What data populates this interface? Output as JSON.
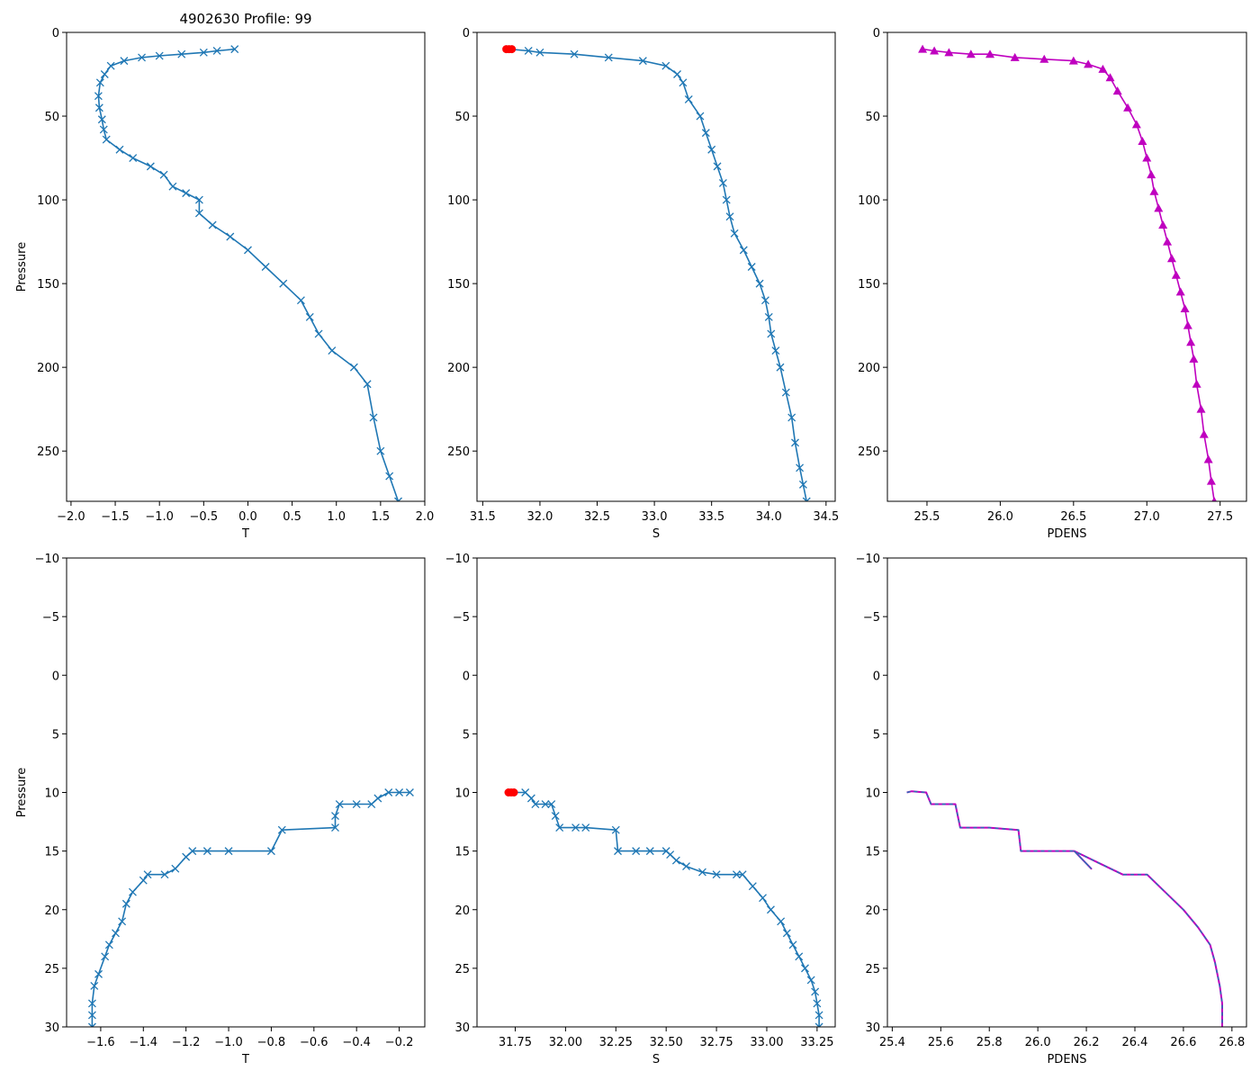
{
  "figure_title": "4902630 Profile: 99",
  "colors": {
    "series": "#1f77b4",
    "surface_marker": "#ff0000",
    "density": "#bf00bf",
    "density_dash": "#1f77b4"
  },
  "chart_data": [
    {
      "id": "top-t",
      "type": "line",
      "title": "4902630 Profile: 99",
      "xlabel": "T",
      "ylabel": "Pressure",
      "xlim": [
        -2.05,
        2.0
      ],
      "ylim": [
        280,
        0
      ],
      "y_inverted": true,
      "xticks": [
        -2.0,
        -1.5,
        -1.0,
        -0.5,
        0.0,
        0.5,
        1.0,
        1.5,
        2.0
      ],
      "xtick_labels": [
        "−2.0",
        "−1.5",
        "−1.0",
        "−0.5",
        "0.0",
        "0.5",
        "1.0",
        "1.5",
        "2.0"
      ],
      "yticks": [
        0,
        50,
        100,
        150,
        200,
        250
      ],
      "ytick_labels": [
        "0",
        "50",
        "100",
        "150",
        "200",
        "250"
      ],
      "series": [
        {
          "name": "T",
          "marker": "x",
          "color": "#1f77b4",
          "points": [
            [
              -0.15,
              10
            ],
            [
              -0.35,
              11
            ],
            [
              -0.5,
              12
            ],
            [
              -0.75,
              13
            ],
            [
              -1.0,
              14
            ],
            [
              -1.2,
              15
            ],
            [
              -1.4,
              17
            ],
            [
              -1.55,
              20
            ],
            [
              -1.62,
              25
            ],
            [
              -1.67,
              30
            ],
            [
              -1.69,
              38
            ],
            [
              -1.68,
              45
            ],
            [
              -1.65,
              52
            ],
            [
              -1.63,
              58
            ],
            [
              -1.6,
              64
            ],
            [
              -1.45,
              70
            ],
            [
              -1.3,
              75
            ],
            [
              -1.1,
              80
            ],
            [
              -0.95,
              85
            ],
            [
              -0.85,
              92
            ],
            [
              -0.7,
              96
            ],
            [
              -0.55,
              100
            ],
            [
              -0.55,
              108
            ],
            [
              -0.4,
              115
            ],
            [
              -0.2,
              122
            ],
            [
              0.0,
              130
            ],
            [
              0.2,
              140
            ],
            [
              0.4,
              150
            ],
            [
              0.6,
              160
            ],
            [
              0.7,
              170
            ],
            [
              0.8,
              180
            ],
            [
              0.95,
              190
            ],
            [
              1.2,
              200
            ],
            [
              1.35,
              210
            ],
            [
              1.42,
              230
            ],
            [
              1.5,
              250
            ],
            [
              1.6,
              265
            ],
            [
              1.7,
              280
            ]
          ]
        }
      ]
    },
    {
      "id": "top-s",
      "type": "line",
      "xlabel": "S",
      "ylabel": "",
      "xlim": [
        31.45,
        34.58
      ],
      "ylim": [
        280,
        0
      ],
      "y_inverted": true,
      "xticks": [
        31.5,
        32.0,
        32.5,
        33.0,
        33.5,
        34.0,
        34.5
      ],
      "xtick_labels": [
        "31.5",
        "32.0",
        "32.5",
        "33.0",
        "33.5",
        "34.0",
        "34.5"
      ],
      "yticks": [
        0,
        50,
        100,
        150,
        200,
        250
      ],
      "ytick_labels": [
        "0",
        "50",
        "100",
        "150",
        "200",
        "250"
      ],
      "series": [
        {
          "name": "S",
          "marker": "x",
          "color": "#1f77b4",
          "points": [
            [
              31.73,
              10
            ],
            [
              31.9,
              11
            ],
            [
              32.0,
              12
            ],
            [
              32.3,
              13
            ],
            [
              32.6,
              15
            ],
            [
              32.9,
              17
            ],
            [
              33.1,
              20
            ],
            [
              33.2,
              25
            ],
            [
              33.25,
              30
            ],
            [
              33.3,
              40
            ],
            [
              33.4,
              50
            ],
            [
              33.45,
              60
            ],
            [
              33.5,
              70
            ],
            [
              33.55,
              80
            ],
            [
              33.6,
              90
            ],
            [
              33.63,
              100
            ],
            [
              33.66,
              110
            ],
            [
              33.7,
              120
            ],
            [
              33.78,
              130
            ],
            [
              33.85,
              140
            ],
            [
              33.92,
              150
            ],
            [
              33.97,
              160
            ],
            [
              34.0,
              170
            ],
            [
              34.02,
              180
            ],
            [
              34.06,
              190
            ],
            [
              34.1,
              200
            ],
            [
              34.15,
              215
            ],
            [
              34.2,
              230
            ],
            [
              34.23,
              245
            ],
            [
              34.27,
              260
            ],
            [
              34.3,
              270
            ],
            [
              34.33,
              280
            ]
          ]
        }
      ],
      "surface_marker": {
        "x": 31.73,
        "y": 10,
        "color": "#ff0000"
      }
    },
    {
      "id": "top-pdens",
      "type": "line",
      "xlabel": "PDENS",
      "ylabel": "",
      "xlim": [
        25.23,
        27.68
      ],
      "ylim": [
        280,
        0
      ],
      "y_inverted": true,
      "xticks": [
        25.5,
        26.0,
        26.5,
        27.0,
        27.5
      ],
      "xtick_labels": [
        "25.5",
        "26.0",
        "26.5",
        "27.0",
        "27.5"
      ],
      "yticks": [
        0,
        50,
        100,
        150,
        200,
        250
      ],
      "ytick_labels": [
        "0",
        "50",
        "100",
        "150",
        "200",
        "250"
      ],
      "series": [
        {
          "name": "PDENS",
          "marker": "^",
          "color": "#bf00bf",
          "points": [
            [
              25.47,
              10
            ],
            [
              25.55,
              11
            ],
            [
              25.65,
              12
            ],
            [
              25.8,
              13
            ],
            [
              25.93,
              13
            ],
            [
              26.1,
              15
            ],
            [
              26.3,
              16
            ],
            [
              26.5,
              17
            ],
            [
              26.6,
              19
            ],
            [
              26.7,
              22
            ],
            [
              26.75,
              27
            ],
            [
              26.8,
              35
            ],
            [
              26.87,
              45
            ],
            [
              26.93,
              55
            ],
            [
              26.97,
              65
            ],
            [
              27.0,
              75
            ],
            [
              27.03,
              85
            ],
            [
              27.05,
              95
            ],
            [
              27.08,
              105
            ],
            [
              27.11,
              115
            ],
            [
              27.14,
              125
            ],
            [
              27.17,
              135
            ],
            [
              27.2,
              145
            ],
            [
              27.23,
              155
            ],
            [
              27.26,
              165
            ],
            [
              27.28,
              175
            ],
            [
              27.3,
              185
            ],
            [
              27.32,
              195
            ],
            [
              27.34,
              210
            ],
            [
              27.37,
              225
            ],
            [
              27.39,
              240
            ],
            [
              27.42,
              255
            ],
            [
              27.44,
              268
            ],
            [
              27.46,
              280
            ]
          ]
        }
      ]
    },
    {
      "id": "bottom-t",
      "type": "line",
      "xlabel": "T",
      "ylabel": "Pressure",
      "xlim": [
        -1.76,
        -0.08
      ],
      "ylim": [
        30,
        -10
      ],
      "y_inverted": true,
      "xticks": [
        -1.6,
        -1.4,
        -1.2,
        -1.0,
        -0.8,
        -0.6,
        -0.4,
        -0.2
      ],
      "xtick_labels": [
        "−1.6",
        "−1.4",
        "−1.2",
        "−1.0",
        "−0.8",
        "−0.6",
        "−0.4",
        "−0.2"
      ],
      "yticks": [
        -10,
        -5,
        0,
        5,
        10,
        15,
        20,
        25,
        30
      ],
      "ytick_labels": [
        "−10",
        "−5",
        "0",
        "5",
        "10",
        "15",
        "20",
        "25",
        "30"
      ],
      "series": [
        {
          "name": "T",
          "marker": "x",
          "color": "#1f77b4",
          "points": [
            [
              -0.15,
              10
            ],
            [
              -0.2,
              10
            ],
            [
              -0.25,
              10
            ],
            [
              -0.3,
              10.5
            ],
            [
              -0.33,
              11
            ],
            [
              -0.4,
              11
            ],
            [
              -0.48,
              11
            ],
            [
              -0.5,
              12
            ],
            [
              -0.5,
              13
            ],
            [
              -0.75,
              13.2
            ],
            [
              -0.8,
              15
            ],
            [
              -1.0,
              15
            ],
            [
              -1.1,
              15
            ],
            [
              -1.17,
              15
            ],
            [
              -1.2,
              15.5
            ],
            [
              -1.25,
              16.5
            ],
            [
              -1.3,
              17
            ],
            [
              -1.38,
              17
            ],
            [
              -1.4,
              17.5
            ],
            [
              -1.45,
              18.5
            ],
            [
              -1.48,
              19.5
            ],
            [
              -1.5,
              21
            ],
            [
              -1.53,
              22
            ],
            [
              -1.56,
              23
            ],
            [
              -1.58,
              24
            ],
            [
              -1.61,
              25.5
            ],
            [
              -1.63,
              26.5
            ],
            [
              -1.64,
              28
            ],
            [
              -1.64,
              29
            ],
            [
              -1.64,
              30
            ]
          ]
        }
      ]
    },
    {
      "id": "bottom-s",
      "type": "line",
      "xlabel": "S",
      "ylabel": "",
      "xlim": [
        31.56,
        33.34
      ],
      "ylim": [
        30,
        -10
      ],
      "y_inverted": true,
      "xticks": [
        31.75,
        32.0,
        32.25,
        32.5,
        32.75,
        33.0,
        33.25
      ],
      "xtick_labels": [
        "31.75",
        "32.00",
        "32.25",
        "32.50",
        "32.75",
        "33.00",
        "33.25"
      ],
      "yticks": [
        -10,
        -5,
        0,
        5,
        10,
        15,
        20,
        25,
        30
      ],
      "ytick_labels": [
        "−10",
        "−5",
        "0",
        "5",
        "10",
        "15",
        "20",
        "25",
        "30"
      ],
      "series": [
        {
          "name": "S",
          "marker": "x",
          "color": "#1f77b4",
          "points": [
            [
              31.73,
              10
            ],
            [
              31.8,
              10
            ],
            [
              31.83,
              10.5
            ],
            [
              31.85,
              11
            ],
            [
              31.9,
              11
            ],
            [
              31.93,
              11
            ],
            [
              31.95,
              12
            ],
            [
              31.97,
              13
            ],
            [
              32.05,
              13
            ],
            [
              32.1,
              13
            ],
            [
              32.25,
              13.2
            ],
            [
              32.26,
              15
            ],
            [
              32.35,
              15
            ],
            [
              32.42,
              15
            ],
            [
              32.5,
              15
            ],
            [
              32.52,
              15.3
            ],
            [
              32.55,
              15.8
            ],
            [
              32.6,
              16.3
            ],
            [
              32.68,
              16.8
            ],
            [
              32.75,
              17
            ],
            [
              32.85,
              17
            ],
            [
              32.88,
              17
            ],
            [
              32.93,
              18
            ],
            [
              32.98,
              19
            ],
            [
              33.02,
              20
            ],
            [
              33.07,
              21
            ],
            [
              33.1,
              22
            ],
            [
              33.13,
              23
            ],
            [
              33.16,
              24
            ],
            [
              33.19,
              25
            ],
            [
              33.22,
              26
            ],
            [
              33.24,
              27
            ],
            [
              33.25,
              28
            ],
            [
              33.26,
              29
            ],
            [
              33.26,
              30
            ]
          ]
        }
      ],
      "surface_marker": {
        "x": 31.73,
        "y": 10,
        "color": "#ff0000"
      }
    },
    {
      "id": "bottom-pdens",
      "type": "line",
      "xlabel": "PDENS",
      "ylabel": "",
      "xlim": [
        25.38,
        26.86
      ],
      "ylim": [
        30,
        -10
      ],
      "y_inverted": true,
      "xticks": [
        25.4,
        25.6,
        25.8,
        26.0,
        26.2,
        26.4,
        26.6,
        26.8
      ],
      "xtick_labels": [
        "25.4",
        "25.6",
        "25.8",
        "26.0",
        "26.2",
        "26.4",
        "26.6",
        "26.8"
      ],
      "yticks": [
        -10,
        -5,
        0,
        5,
        10,
        15,
        20,
        25,
        30
      ],
      "ytick_labels": [
        "−10",
        "−5",
        "0",
        "5",
        "10",
        "15",
        "20",
        "25",
        "30"
      ],
      "series": [
        {
          "name": "PDENS",
          "marker": "none",
          "color": "#bf00bf",
          "dashed_overlay": "#1f77b4",
          "points": [
            [
              25.46,
              10
            ],
            [
              25.48,
              9.9
            ],
            [
              25.54,
              10
            ],
            [
              25.56,
              11
            ],
            [
              25.66,
              11
            ],
            [
              25.68,
              13
            ],
            [
              25.8,
              13
            ],
            [
              25.92,
              13.2
            ],
            [
              25.93,
              15
            ],
            [
              26.1,
              15
            ],
            [
              26.15,
              15
            ],
            [
              26.22,
              16.5
            ],
            [
              26.15,
              15
            ],
            [
              26.25,
              16
            ],
            [
              26.35,
              17
            ],
            [
              26.45,
              17
            ],
            [
              26.5,
              18
            ],
            [
              26.6,
              20
            ],
            [
              26.66,
              21.5
            ],
            [
              26.71,
              23
            ],
            [
              26.73,
              24.5
            ],
            [
              26.75,
              26.5
            ],
            [
              26.76,
              28
            ],
            [
              26.76,
              30
            ]
          ]
        }
      ]
    }
  ]
}
